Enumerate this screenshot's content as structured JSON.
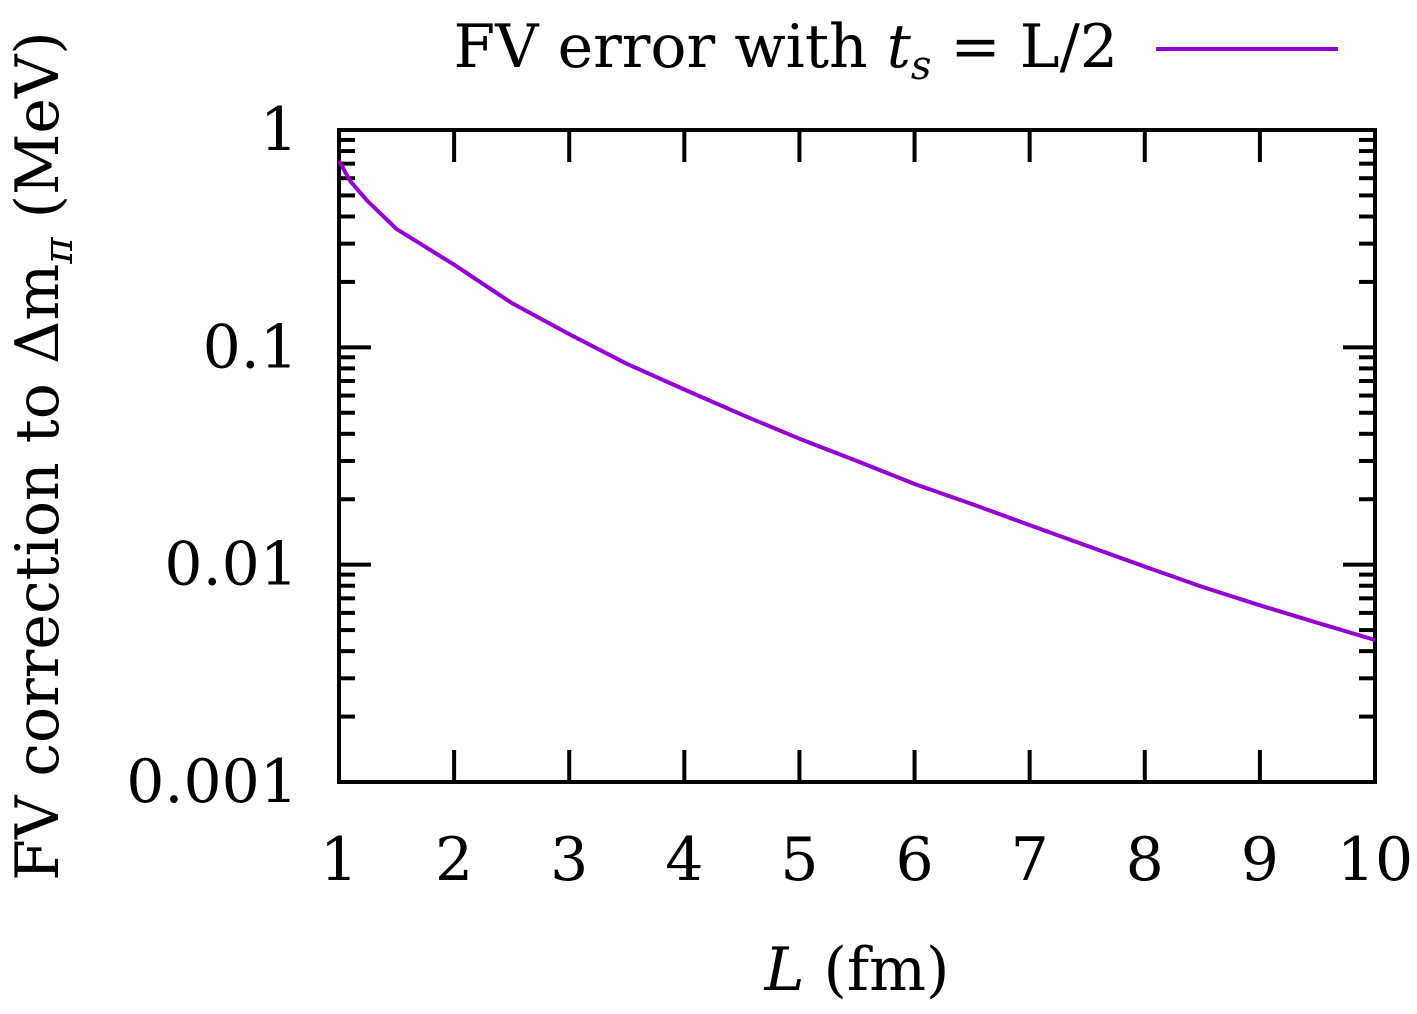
{
  "chart_data": {
    "type": "line",
    "xlabel": "L (fm)",
    "ylabel": "FV correction to Δm_π (MeV)",
    "xlim": [
      1,
      10
    ],
    "ylim": [
      0.001,
      1
    ],
    "yscale": "log",
    "grid": false,
    "legend_position": "top-right",
    "x_ticks": [
      "1",
      "2",
      "3",
      "4",
      "5",
      "6",
      "7",
      "8",
      "9",
      "10"
    ],
    "y_ticks": [
      "0.001",
      "0.01",
      "0.1",
      "1"
    ],
    "series": [
      {
        "name": "FV error with t_s = L/2",
        "color": "#9400d3",
        "x": [
          1.0,
          1.1,
          1.25,
          1.5,
          1.75,
          2.0,
          2.5,
          3.0,
          3.5,
          4.0,
          4.5,
          5.0,
          5.5,
          6.0,
          6.5,
          7.0,
          7.5,
          8.0,
          8.5,
          9.0,
          9.5,
          10.0
        ],
        "y": [
          0.72,
          0.58,
          0.47,
          0.35,
          0.29,
          0.24,
          0.16,
          0.115,
          0.084,
          0.064,
          0.049,
          0.038,
          0.03,
          0.0235,
          0.019,
          0.0152,
          0.0122,
          0.0098,
          0.0079,
          0.0065,
          0.0054,
          0.0045
        ]
      }
    ],
    "legend": {
      "label_prefix": "FV error with ",
      "label_var": "t",
      "label_sub": "s",
      "label_suffix": " = L/2"
    },
    "axis_text": {
      "ylabel_main": "FV correction to Δm",
      "ylabel_sub": "π",
      "ylabel_unit": " (MeV)",
      "xlabel_var": "L",
      "xlabel_unit": " (fm)"
    }
  }
}
